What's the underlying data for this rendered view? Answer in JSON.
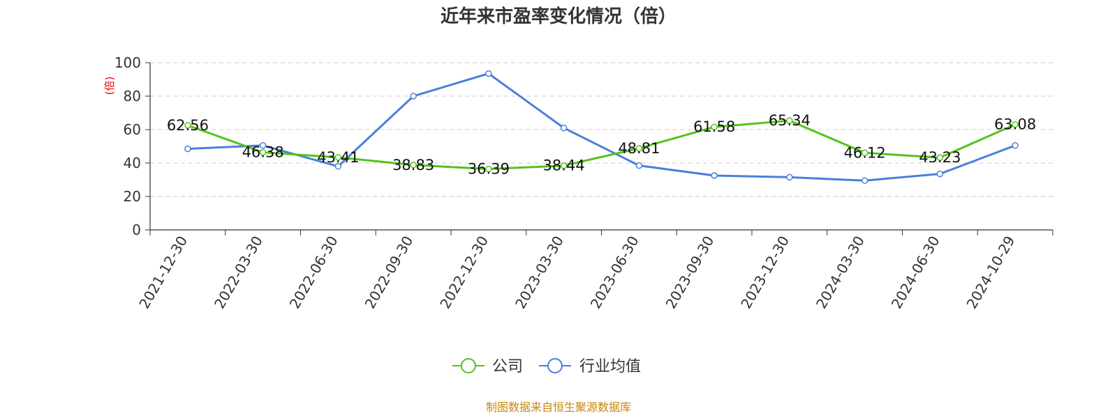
{
  "colors": {
    "company": "#52c41a",
    "industry": "#4a7fdb",
    "unit_label": "#e60000",
    "source": "#c8860a",
    "grid": "#cccccc",
    "axis": "#333333"
  },
  "chart_data": {
    "type": "line",
    "title": "近年来市盈率变化情况（倍）",
    "ylabel": "(倍)",
    "xlabel": "",
    "ylim": [
      0,
      100
    ],
    "yticks": [
      0,
      20,
      40,
      60,
      80,
      100
    ],
    "grid": true,
    "legend_position": "bottom",
    "categories": [
      "2021-12-30",
      "2022-03-30",
      "2022-06-30",
      "2022-09-30",
      "2022-12-30",
      "2023-03-30",
      "2023-06-30",
      "2023-09-30",
      "2023-12-30",
      "2024-03-30",
      "2024-06-30",
      "2024-10-29"
    ],
    "series": [
      {
        "name": "公司",
        "values": [
          62.56,
          46.38,
          43.41,
          38.83,
          36.39,
          38.44,
          48.81,
          61.58,
          65.34,
          46.12,
          43.23,
          63.08
        ],
        "show_labels": true
      },
      {
        "name": "行业均值",
        "values": [
          48.5,
          50.5,
          38.0,
          80.0,
          93.5,
          61.0,
          38.5,
          32.5,
          31.5,
          29.5,
          33.5,
          50.5
        ],
        "show_labels": false
      }
    ]
  },
  "footer": {
    "source": "制图数据来自恒生聚源数据库"
  }
}
